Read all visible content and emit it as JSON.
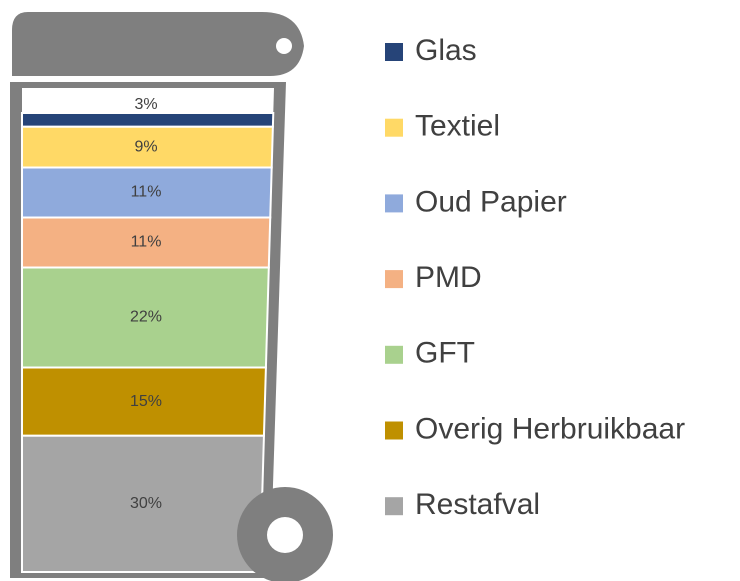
{
  "chart_data": {
    "type": "stacked-bar",
    "series": [
      {
        "name": "Glas",
        "color": "#264478",
        "values": [
          3
        ],
        "value_labels": [
          "3%"
        ]
      },
      {
        "name": "Textiel",
        "color": "#ffd966",
        "values": [
          9
        ],
        "value_labels": [
          "9%"
        ]
      },
      {
        "name": "Oud Papier",
        "color": "#8faadc",
        "values": [
          11
        ],
        "value_labels": [
          "11%"
        ]
      },
      {
        "name": "PMD",
        "color": "#f4b183",
        "values": [
          11
        ],
        "value_labels": [
          "11%"
        ]
      },
      {
        "name": "GFT",
        "color": "#a9d18e",
        "values": [
          22
        ],
        "value_labels": [
          "22%"
        ]
      },
      {
        "name": "Overig Herbruikbaar",
        "color": "#bf9000",
        "values": [
          15
        ],
        "value_labels": [
          "15%"
        ]
      },
      {
        "name": "Restafval",
        "color": "#a5a5a5",
        "values": [
          30
        ],
        "value_labels": [
          "30%"
        ]
      }
    ],
    "legend": "right"
  }
}
